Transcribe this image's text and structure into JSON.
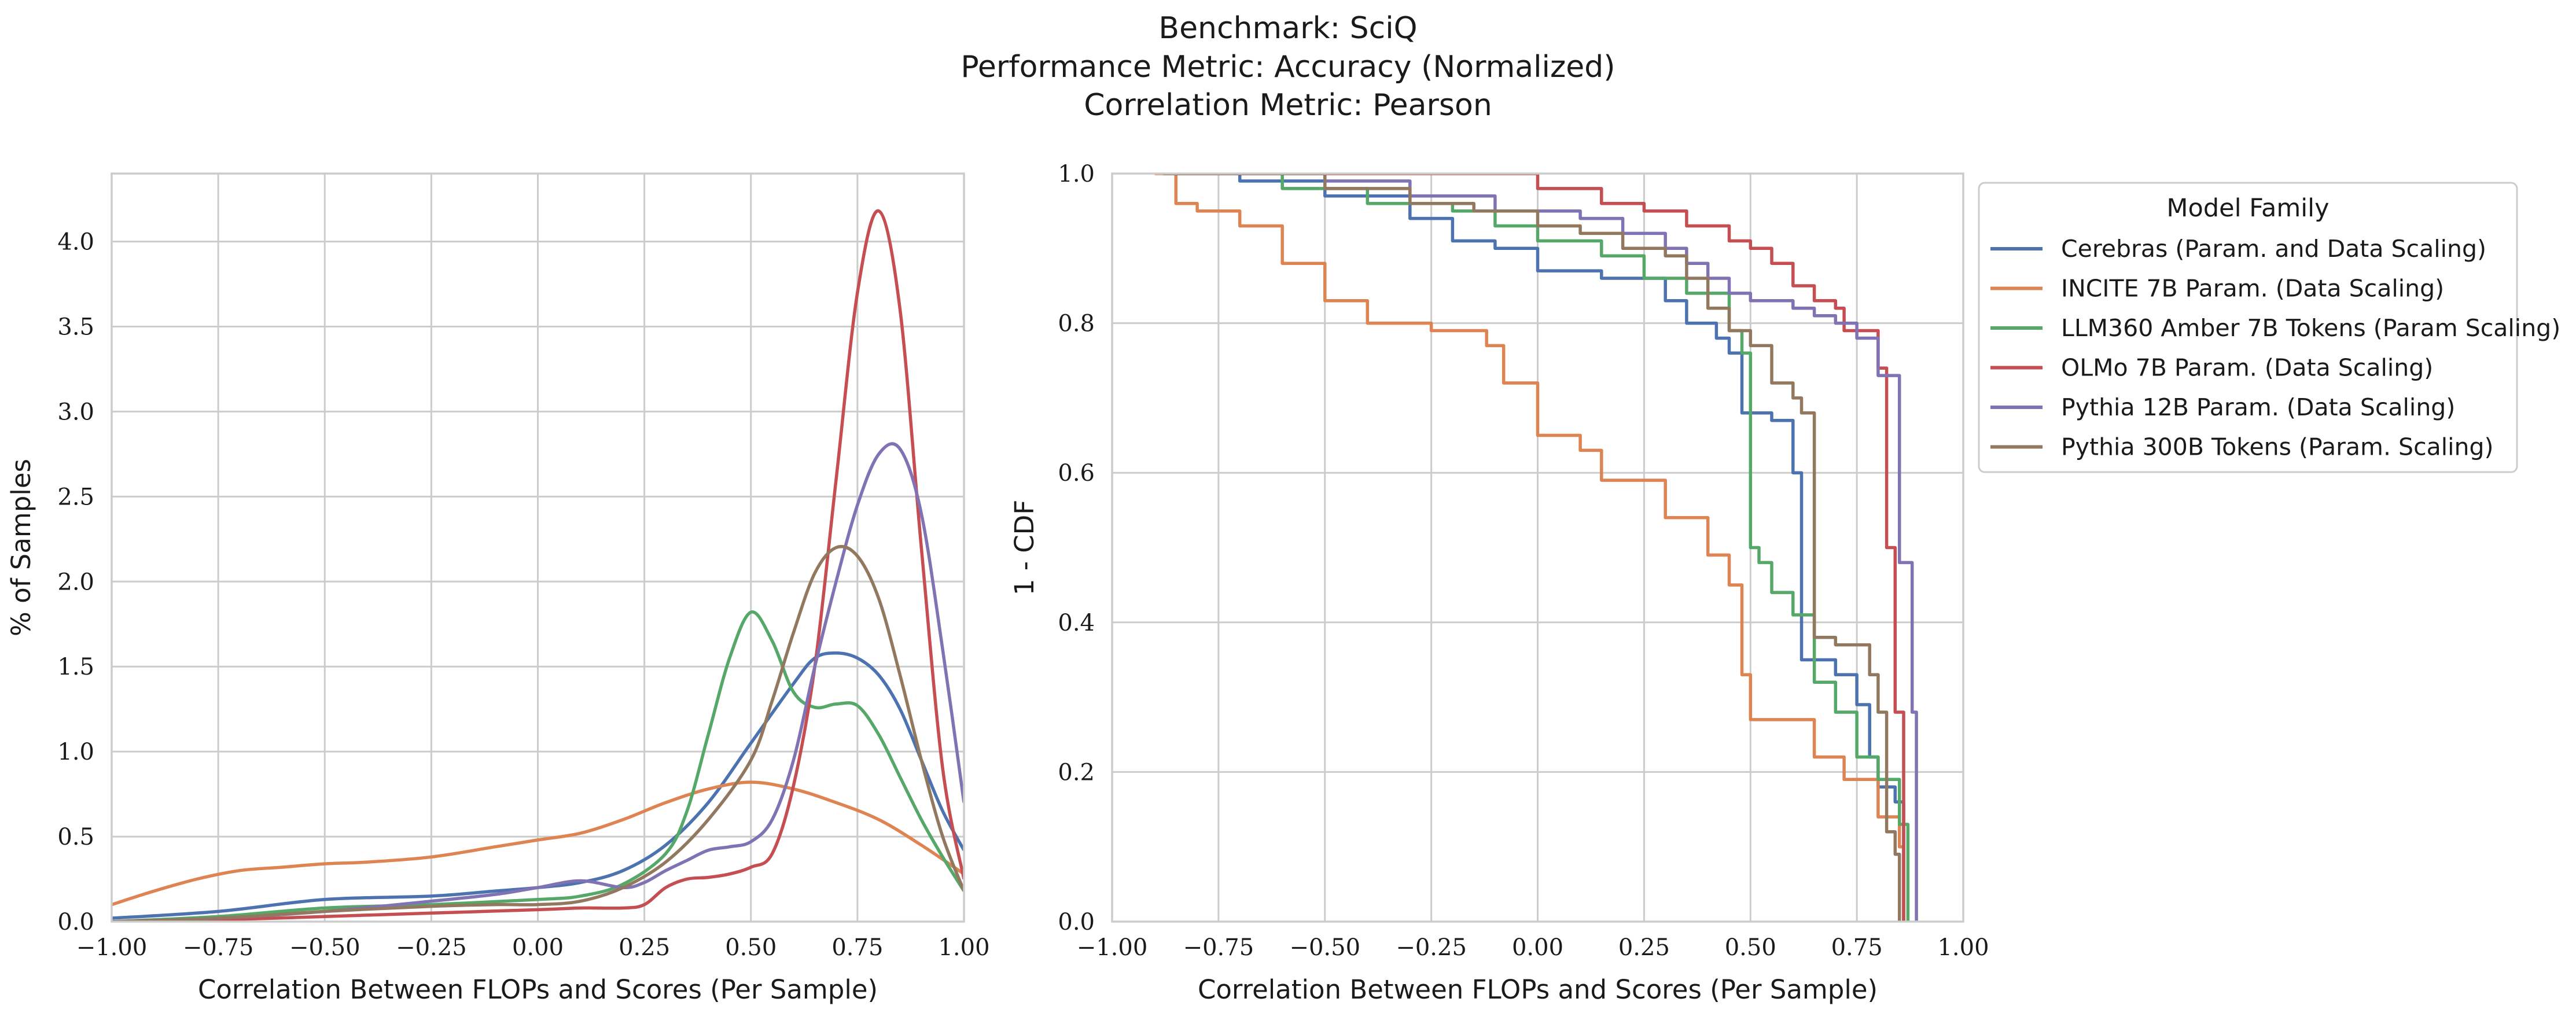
{
  "title_lines": [
    "Benchmark: SciQ",
    "Performance Metric: Accuracy (Normalized)",
    "Correlation Metric: Pearson"
  ],
  "legend": {
    "title": "Model Family",
    "placement": "right, outside, upper"
  },
  "chart_data": [
    {
      "type": "line",
      "kind": "kde",
      "xlabel": "Correlation Between FLOPs and Scores (Per Sample)",
      "ylabel": "% of Samples",
      "xlim": [
        -1.0,
        1.0
      ],
      "ylim": [
        0,
        4.4
      ],
      "xticks": [
        "−1.00",
        "−0.75",
        "−0.50",
        "−0.25",
        "0.00",
        "0.25",
        "0.50",
        "0.75",
        "1.00"
      ],
      "yticks": [
        "0.0",
        "0.5",
        "1.0",
        "1.5",
        "2.0",
        "2.5",
        "3.0",
        "3.5",
        "4.0"
      ],
      "grid": true,
      "series": [
        {
          "name": "Cerebras (Param. and Data Scaling)",
          "color": "#4c72b0",
          "x": [
            -1.0,
            -0.75,
            -0.5,
            -0.25,
            -0.1,
            0.0,
            0.1,
            0.2,
            0.3,
            0.4,
            0.5,
            0.6,
            0.65,
            0.7,
            0.75,
            0.8,
            0.85,
            0.9,
            0.95,
            1.0
          ],
          "y": [
            0.02,
            0.06,
            0.13,
            0.15,
            0.18,
            0.2,
            0.23,
            0.3,
            0.45,
            0.7,
            1.05,
            1.4,
            1.55,
            1.58,
            1.55,
            1.45,
            1.25,
            0.95,
            0.65,
            0.42
          ]
        },
        {
          "name": "INCITE 7B Param. (Data Scaling)",
          "color": "#dd8452",
          "x": [
            -1.0,
            -0.9,
            -0.8,
            -0.7,
            -0.6,
            -0.5,
            -0.4,
            -0.25,
            -0.1,
            0.0,
            0.1,
            0.2,
            0.3,
            0.4,
            0.5,
            0.6,
            0.7,
            0.8,
            0.9,
            1.0
          ],
          "y": [
            0.1,
            0.18,
            0.25,
            0.3,
            0.32,
            0.34,
            0.35,
            0.38,
            0.44,
            0.48,
            0.52,
            0.6,
            0.7,
            0.78,
            0.82,
            0.78,
            0.7,
            0.6,
            0.45,
            0.28
          ]
        },
        {
          "name": "LLM360 Amber 7B Tokens (Param Scaling)",
          "color": "#55a868",
          "x": [
            -1.0,
            -0.75,
            -0.5,
            -0.25,
            0.0,
            0.1,
            0.2,
            0.3,
            0.35,
            0.4,
            0.45,
            0.5,
            0.55,
            0.6,
            0.65,
            0.7,
            0.75,
            0.8,
            0.85,
            0.9,
            0.95,
            1.0
          ],
          "y": [
            0.0,
            0.03,
            0.08,
            0.1,
            0.13,
            0.15,
            0.22,
            0.4,
            0.65,
            1.1,
            1.55,
            1.82,
            1.65,
            1.35,
            1.26,
            1.28,
            1.27,
            1.1,
            0.85,
            0.6,
            0.38,
            0.18
          ]
        },
        {
          "name": "OLMo 7B Param. (Data Scaling)",
          "color": "#c44e52",
          "x": [
            -1.0,
            -0.75,
            -0.5,
            -0.25,
            0.0,
            0.1,
            0.2,
            0.25,
            0.3,
            0.35,
            0.4,
            0.45,
            0.5,
            0.55,
            0.6,
            0.65,
            0.7,
            0.75,
            0.8,
            0.85,
            0.9,
            0.95,
            1.0
          ],
          "y": [
            0.0,
            0.01,
            0.03,
            0.05,
            0.07,
            0.08,
            0.08,
            0.1,
            0.2,
            0.25,
            0.26,
            0.28,
            0.32,
            0.4,
            0.8,
            1.5,
            2.6,
            3.7,
            4.18,
            3.6,
            2.2,
            0.9,
            0.25
          ]
        },
        {
          "name": "Pythia 12B Param. (Data Scaling)",
          "color": "#8172b3",
          "x": [
            -1.0,
            -0.75,
            -0.5,
            -0.25,
            -0.1,
            0.0,
            0.1,
            0.2,
            0.25,
            0.3,
            0.35,
            0.4,
            0.45,
            0.5,
            0.55,
            0.6,
            0.65,
            0.7,
            0.75,
            0.8,
            0.85,
            0.9,
            0.95,
            1.0
          ],
          "y": [
            0.0,
            0.02,
            0.06,
            0.12,
            0.16,
            0.2,
            0.24,
            0.2,
            0.23,
            0.3,
            0.36,
            0.42,
            0.44,
            0.47,
            0.6,
            0.95,
            1.5,
            2.0,
            2.45,
            2.75,
            2.78,
            2.4,
            1.6,
            0.7
          ]
        },
        {
          "name": "Pythia 300B Tokens (Param. Scaling)",
          "color": "#937860",
          "x": [
            -1.0,
            -0.75,
            -0.5,
            -0.25,
            -0.1,
            0.0,
            0.1,
            0.2,
            0.3,
            0.4,
            0.5,
            0.55,
            0.6,
            0.65,
            0.7,
            0.75,
            0.8,
            0.85,
            0.9,
            0.95,
            1.0
          ],
          "y": [
            0.0,
            0.02,
            0.06,
            0.09,
            0.1,
            0.1,
            0.12,
            0.2,
            0.35,
            0.6,
            0.95,
            1.3,
            1.7,
            2.05,
            2.2,
            2.15,
            1.9,
            1.45,
            0.95,
            0.5,
            0.18
          ]
        }
      ]
    },
    {
      "type": "line",
      "kind": "step (1 - CDF)",
      "xlabel": "Correlation Between FLOPs and Scores (Per Sample)",
      "ylabel": "1 - CDF",
      "xlim": [
        -1.0,
        1.0
      ],
      "ylim": [
        0,
        1.0
      ],
      "xticks": [
        "−1.00",
        "−0.75",
        "−0.50",
        "−0.25",
        "0.00",
        "0.25",
        "0.50",
        "0.75",
        "1.00"
      ],
      "yticks": [
        "0.0",
        "0.2",
        "0.4",
        "0.6",
        "0.8",
        "1.0"
      ],
      "grid": true,
      "series": [
        {
          "name": "Cerebras (Param. and Data Scaling)",
          "color": "#4c72b0",
          "x": [
            -0.88,
            -0.7,
            -0.5,
            -0.3,
            -0.2,
            -0.1,
            0.0,
            0.15,
            0.3,
            0.35,
            0.42,
            0.45,
            0.48,
            0.55,
            0.6,
            0.62,
            0.7,
            0.75,
            0.78,
            0.8,
            0.84,
            0.86
          ],
          "y": [
            1.0,
            0.99,
            0.97,
            0.94,
            0.91,
            0.9,
            0.87,
            0.86,
            0.83,
            0.8,
            0.78,
            0.76,
            0.68,
            0.67,
            0.6,
            0.35,
            0.33,
            0.29,
            0.22,
            0.18,
            0.16,
            0.0
          ]
        },
        {
          "name": "INCITE 7B Param. (Data Scaling)",
          "color": "#dd8452",
          "x": [
            -0.9,
            -0.85,
            -0.8,
            -0.7,
            -0.6,
            -0.5,
            -0.4,
            -0.25,
            -0.12,
            -0.08,
            0.0,
            0.1,
            0.15,
            0.3,
            0.4,
            0.45,
            0.48,
            0.5,
            0.55,
            0.65,
            0.72,
            0.8,
            0.85,
            0.86
          ],
          "y": [
            1.0,
            0.96,
            0.95,
            0.93,
            0.88,
            0.83,
            0.8,
            0.79,
            0.77,
            0.72,
            0.65,
            0.63,
            0.59,
            0.54,
            0.49,
            0.45,
            0.33,
            0.27,
            0.27,
            0.22,
            0.19,
            0.14,
            0.1,
            0.0
          ]
        },
        {
          "name": "LLM360 Amber 7B Tokens (Param Scaling)",
          "color": "#55a868",
          "x": [
            -0.88,
            -0.6,
            -0.4,
            -0.2,
            -0.1,
            0.0,
            0.15,
            0.25,
            0.35,
            0.45,
            0.48,
            0.5,
            0.52,
            0.55,
            0.6,
            0.65,
            0.7,
            0.75,
            0.8,
            0.85,
            0.87
          ],
          "y": [
            1.0,
            0.98,
            0.96,
            0.95,
            0.93,
            0.91,
            0.89,
            0.86,
            0.84,
            0.79,
            0.76,
            0.5,
            0.48,
            0.44,
            0.41,
            0.32,
            0.28,
            0.22,
            0.19,
            0.13,
            0.0
          ]
        },
        {
          "name": "OLMo 7B Param. (Data Scaling)",
          "color": "#c44e52",
          "x": [
            -0.88,
            -0.4,
            0.0,
            0.15,
            0.25,
            0.35,
            0.45,
            0.5,
            0.55,
            0.6,
            0.65,
            0.7,
            0.72,
            0.8,
            0.82,
            0.84,
            0.86
          ],
          "y": [
            1.0,
            1.0,
            0.98,
            0.96,
            0.95,
            0.93,
            0.91,
            0.9,
            0.88,
            0.85,
            0.83,
            0.82,
            0.79,
            0.74,
            0.5,
            0.28,
            0.0
          ]
        },
        {
          "name": "Pythia 12B Param. (Data Scaling)",
          "color": "#8172b3",
          "x": [
            -0.88,
            -0.5,
            -0.3,
            -0.1,
            0.1,
            0.2,
            0.3,
            0.35,
            0.4,
            0.45,
            0.5,
            0.6,
            0.65,
            0.7,
            0.75,
            0.8,
            0.85,
            0.88,
            0.89
          ],
          "y": [
            1.0,
            0.99,
            0.97,
            0.95,
            0.94,
            0.92,
            0.9,
            0.88,
            0.86,
            0.84,
            0.83,
            0.82,
            0.81,
            0.8,
            0.78,
            0.73,
            0.48,
            0.28,
            0.0
          ]
        },
        {
          "name": "Pythia 300B Tokens (Param. Scaling)",
          "color": "#937860",
          "x": [
            -0.88,
            -0.5,
            -0.3,
            -0.15,
            0.0,
            0.1,
            0.2,
            0.3,
            0.35,
            0.4,
            0.45,
            0.5,
            0.55,
            0.6,
            0.62,
            0.65,
            0.7,
            0.78,
            0.8,
            0.82,
            0.84,
            0.85
          ],
          "y": [
            1.0,
            0.98,
            0.96,
            0.95,
            0.93,
            0.92,
            0.9,
            0.89,
            0.86,
            0.82,
            0.79,
            0.77,
            0.72,
            0.7,
            0.68,
            0.38,
            0.37,
            0.33,
            0.28,
            0.12,
            0.09,
            0.0
          ]
        }
      ]
    }
  ]
}
